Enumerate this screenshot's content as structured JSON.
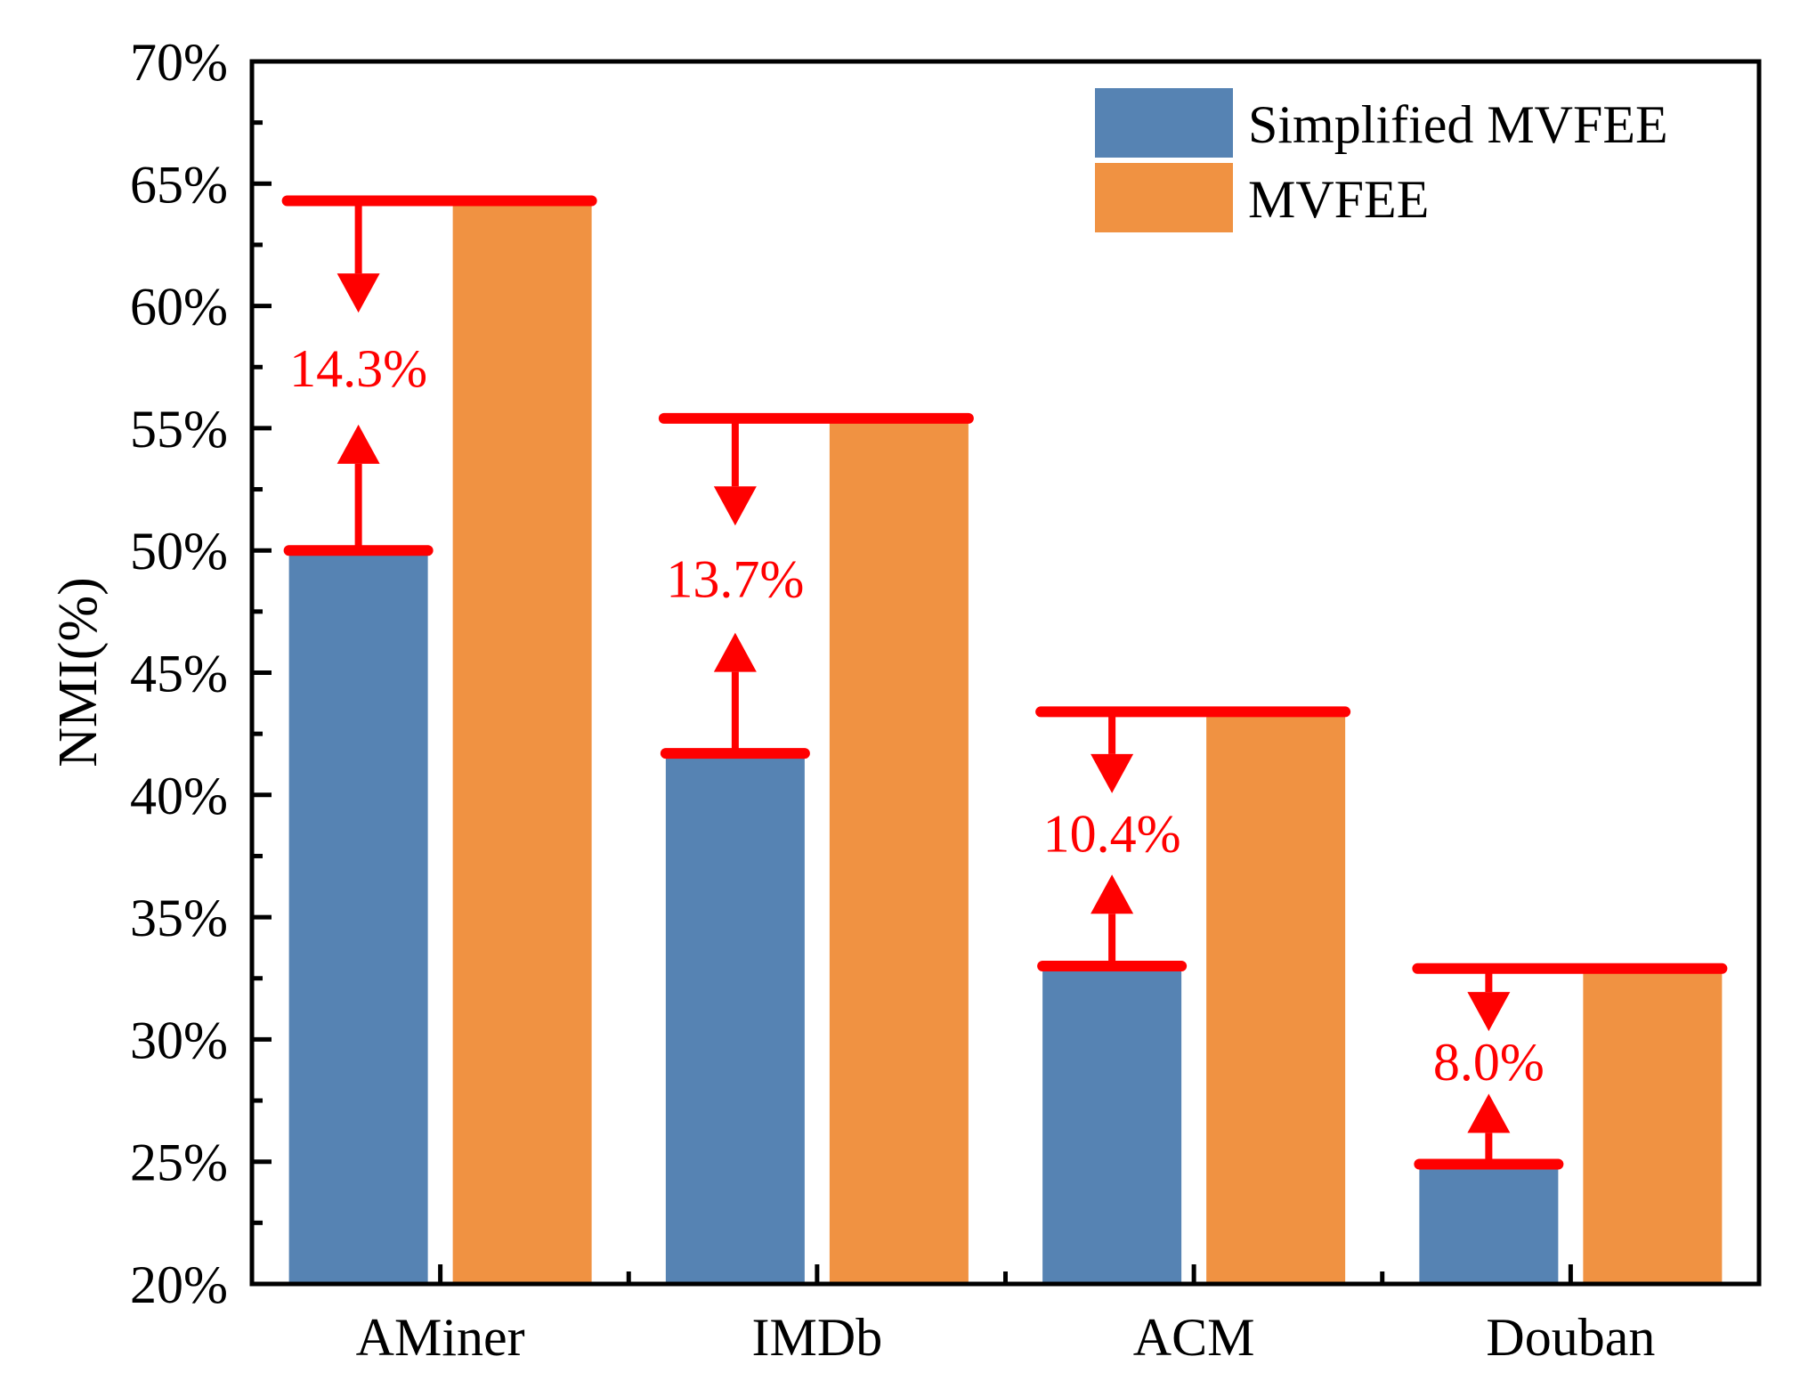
{
  "chart_data": {
    "type": "bar",
    "title": "",
    "xlabel": "",
    "ylabel": "NMI(%)",
    "ylim": [
      20,
      70
    ],
    "yticks": [
      20,
      25,
      30,
      35,
      40,
      45,
      50,
      55,
      60,
      65,
      70
    ],
    "ytick_labels": [
      "20%",
      "25%",
      "30%",
      "35%",
      "40%",
      "45%",
      "50%",
      "55%",
      "60%",
      "65%",
      "70%"
    ],
    "categories": [
      "AMiner",
      "IMDb",
      "ACM",
      "Douban"
    ],
    "series": [
      {
        "name": "Simplified MVFEE",
        "color": "#5683B3",
        "values": [
          50.0,
          41.7,
          33.0,
          24.9
        ]
      },
      {
        "name": "MVFEE",
        "color": "#F09242",
        "values": [
          64.3,
          55.4,
          43.4,
          32.9
        ]
      }
    ],
    "annotations": {
      "color": "#FF0000",
      "labels": [
        "14.3%",
        "13.7%",
        "10.4%",
        "8.0%"
      ]
    },
    "legend_position": "top-right",
    "grid": false
  }
}
